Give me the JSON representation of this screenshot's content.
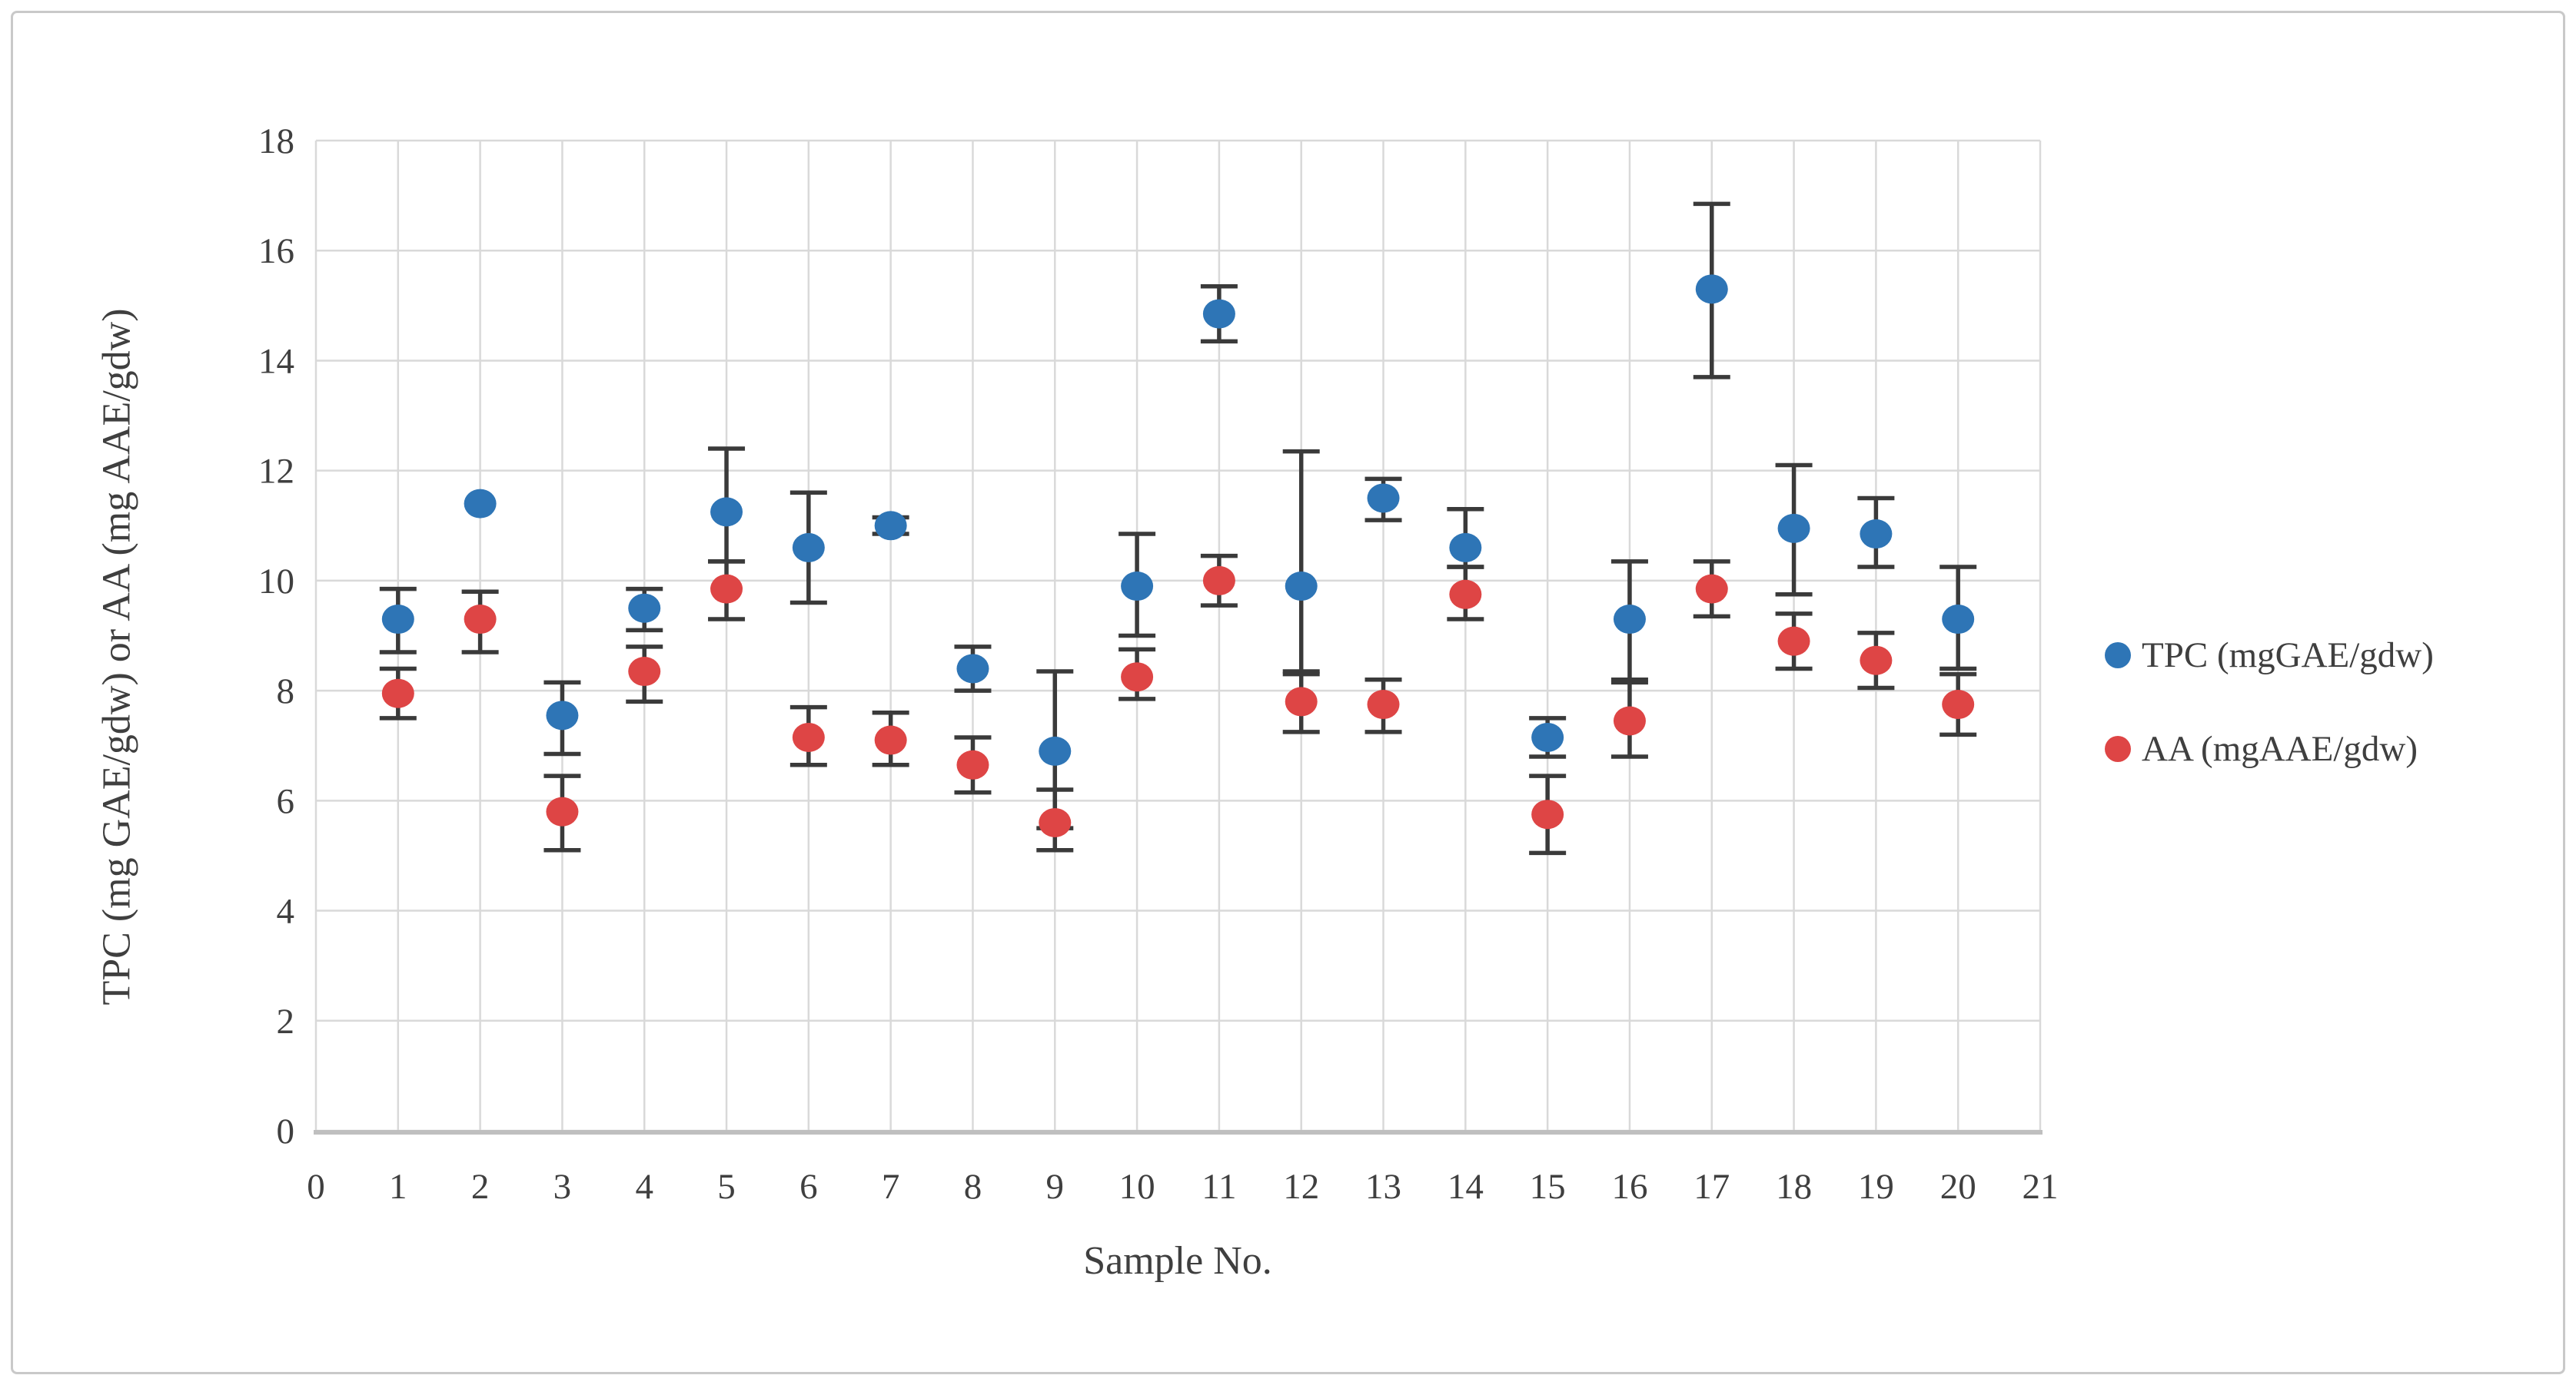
{
  "axes": {
    "y_title": "TPC (mg GAE/gdw)  or AA  (mg AAE/gdw)",
    "x_title": "Sample No."
  },
  "legend": {
    "tpc_label": "TPC (mgGAE/gdw)",
    "aa_label": "AA (mgAAE/gdw)"
  },
  "colors": {
    "tpc": "#2E75B6",
    "aa": "#DE4545",
    "error_bar": "#3a3a3a",
    "gridline": "#d9d9d9",
    "axis_line": "#bfbfbf",
    "text": "#3f3f3f"
  },
  "chart_data": {
    "type": "scatter",
    "title": "",
    "xlabel": "Sample No.",
    "ylabel": "TPC (mg GAE/gdw)  or AA  (mg AAE/gdw)",
    "xlim": [
      0,
      21
    ],
    "ylim": [
      0,
      18
    ],
    "x_ticks": [
      0,
      1,
      2,
      3,
      4,
      5,
      6,
      7,
      8,
      9,
      10,
      11,
      12,
      13,
      14,
      15,
      16,
      17,
      18,
      19,
      20,
      21
    ],
    "y_ticks": [
      0,
      2,
      4,
      6,
      8,
      10,
      12,
      14,
      16,
      18
    ],
    "grid": true,
    "legend_position": "right",
    "error_bars": true,
    "categories": [
      1,
      2,
      3,
      4,
      5,
      6,
      7,
      8,
      9,
      10,
      11,
      12,
      13,
      14,
      15,
      16,
      17,
      18,
      19,
      20
    ],
    "series": [
      {
        "name": "TPC (mgGAE/gdw)",
        "color": "#2E75B6",
        "x": [
          1,
          2,
          3,
          4,
          5,
          6,
          7,
          8,
          9,
          10,
          11,
          12,
          13,
          14,
          15,
          16,
          17,
          18,
          19,
          20
        ],
        "values": [
          9.3,
          11.4,
          7.55,
          9.5,
          11.25,
          10.6,
          11.0,
          8.4,
          6.9,
          9.9,
          14.85,
          9.9,
          11.5,
          10.6,
          7.15,
          9.3,
          15.3,
          10.95,
          10.85,
          9.3
        ],
        "whisker_low": [
          8.7,
          11.4,
          6.85,
          9.1,
          10.35,
          9.6,
          10.85,
          8.0,
          5.5,
          9.0,
          14.35,
          8.3,
          11.1,
          10.25,
          6.8,
          8.2,
          13.7,
          9.75,
          10.25,
          8.4
        ],
        "whisker_high": [
          9.85,
          11.4,
          8.15,
          9.85,
          12.4,
          11.6,
          11.15,
          8.8,
          8.35,
          10.85,
          15.35,
          12.35,
          11.85,
          11.3,
          7.5,
          10.35,
          16.85,
          12.1,
          11.5,
          10.25
        ]
      },
      {
        "name": "AA (mgAAE/gdw)",
        "color": "#DE4545",
        "x": [
          1,
          2,
          3,
          4,
          5,
          6,
          7,
          8,
          9,
          10,
          11,
          12,
          13,
          14,
          15,
          16,
          17,
          18,
          19,
          20
        ],
        "values": [
          7.95,
          9.3,
          5.8,
          8.35,
          9.85,
          7.15,
          7.1,
          6.65,
          5.6,
          8.25,
          10.0,
          7.8,
          7.75,
          9.75,
          5.75,
          7.45,
          9.85,
          8.9,
          8.55,
          7.75
        ],
        "whisker_low": [
          7.5,
          8.7,
          5.1,
          7.8,
          9.3,
          6.65,
          6.65,
          6.15,
          5.1,
          7.85,
          9.55,
          7.25,
          7.25,
          9.3,
          5.05,
          6.8,
          9.35,
          8.4,
          8.05,
          7.2
        ],
        "whisker_high": [
          8.4,
          9.8,
          6.45,
          8.8,
          10.35,
          7.7,
          7.6,
          7.15,
          6.2,
          8.75,
          10.45,
          8.35,
          8.2,
          10.25,
          6.45,
          8.15,
          10.35,
          9.4,
          9.05,
          8.3
        ]
      }
    ]
  }
}
